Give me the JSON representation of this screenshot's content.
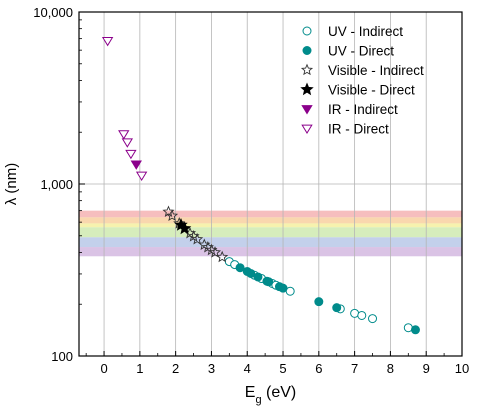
{
  "chart_data": {
    "type": "scatter",
    "xlabel_base": "E",
    "xlabel_sub": "g",
    "xlabel_unit": " (eV)",
    "ylabel": "λ (nm)",
    "xlim": [
      -0.7,
      10
    ],
    "ylim": [
      100,
      10000
    ],
    "y_scale": "log",
    "x_ticks": [
      "0",
      "1",
      "2",
      "3",
      "4",
      "5",
      "6",
      "7",
      "8",
      "9",
      "10"
    ],
    "y_ticks": [
      {
        "value": 100,
        "label": "100"
      },
      {
        "value": 1000,
        "label": "1,000"
      },
      {
        "value": 10000,
        "label": "10,000"
      }
    ],
    "grid": "vertical",
    "legend_position": "top-right",
    "bands": [
      {
        "color": "#f5b3b3",
        "y0": 640,
        "y1": 700
      },
      {
        "color": "#f8d0a0",
        "y0": 590,
        "y1": 640
      },
      {
        "color": "#f5f0a0",
        "y0": 560,
        "y1": 590
      },
      {
        "color": "#cfeab0",
        "y0": 490,
        "y1": 560
      },
      {
        "color": "#b8c8e8",
        "y0": 430,
        "y1": 490
      },
      {
        "color": "#d4b8e0",
        "y0": 380,
        "y1": 430
      }
    ],
    "series": [
      {
        "name": "UV - Indirect",
        "marker": "circle-open",
        "color": "#008b8b",
        "points": [
          [
            3.5,
            354
          ],
          [
            3.65,
            340
          ],
          [
            4.2,
            295
          ],
          [
            4.4,
            282
          ],
          [
            4.7,
            264
          ],
          [
            4.8,
            258
          ],
          [
            5.2,
            238
          ],
          [
            6.6,
            188
          ],
          [
            7.0,
            177
          ],
          [
            7.2,
            172
          ],
          [
            7.5,
            165
          ],
          [
            8.5,
            146
          ]
        ]
      },
      {
        "name": "UV - Direct",
        "marker": "circle-filled",
        "color": "#008b8b",
        "points": [
          [
            3.8,
            326
          ],
          [
            4.0,
            310
          ],
          [
            4.1,
            302
          ],
          [
            4.3,
            288
          ],
          [
            4.55,
            272
          ],
          [
            4.6,
            270
          ],
          [
            4.9,
            253
          ],
          [
            5.0,
            248
          ],
          [
            6.0,
            207
          ],
          [
            6.5,
            191
          ],
          [
            8.7,
            142
          ]
        ]
      },
      {
        "name": "Visible - Indirect",
        "marker": "star-open",
        "color": "#333333",
        "points": [
          [
            1.8,
            689
          ],
          [
            1.9,
            653
          ],
          [
            2.1,
            590
          ],
          [
            2.4,
            517
          ],
          [
            2.5,
            496
          ],
          [
            2.6,
            477
          ],
          [
            2.8,
            443
          ],
          [
            2.9,
            428
          ],
          [
            3.0,
            413
          ],
          [
            3.1,
            400
          ],
          [
            3.3,
            376
          ]
        ]
      },
      {
        "name": "Visible - Direct",
        "marker": "star-filled",
        "color": "#000000",
        "points": [
          [
            2.15,
            577
          ],
          [
            2.25,
            551
          ]
        ]
      },
      {
        "name": "IR - Indirect",
        "marker": "triangle-down-filled",
        "color": "#8b008b",
        "points": [
          [
            0.9,
            1300
          ]
        ]
      },
      {
        "name": "IR - Direct",
        "marker": "triangle-down-open",
        "color": "#8b008b",
        "points": [
          [
            0.1,
            6800
          ],
          [
            0.55,
            1950
          ],
          [
            0.65,
            1750
          ],
          [
            0.75,
            1500
          ],
          [
            1.05,
            1120
          ]
        ]
      }
    ]
  }
}
